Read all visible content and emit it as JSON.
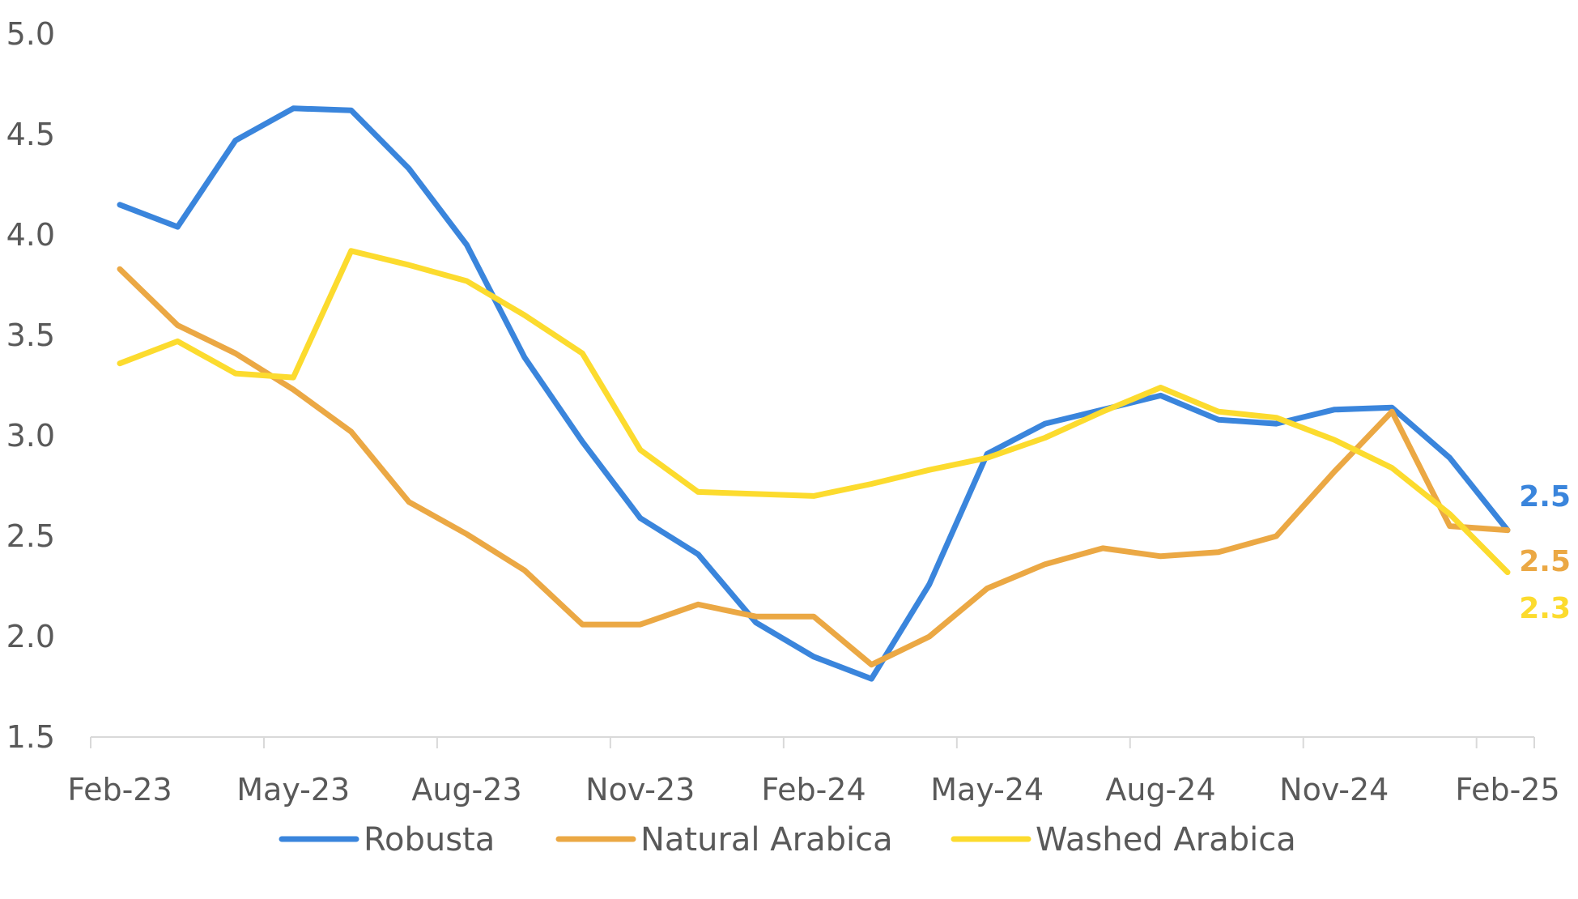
{
  "chart_data": {
    "type": "line",
    "title": "",
    "xlabel": "",
    "ylabel": "",
    "x": [
      "Feb-23",
      "Mar-23",
      "Apr-23",
      "May-23",
      "Jun-23",
      "Jul-23",
      "Aug-23",
      "Sep-23",
      "Oct-23",
      "Nov-23",
      "Dec-23",
      "Jan-24",
      "Feb-24",
      "Mar-24",
      "Apr-24",
      "May-24",
      "Jun-24",
      "Jul-24",
      "Aug-24",
      "Sep-24",
      "Oct-24",
      "Nov-24",
      "Dec-24",
      "Jan-25",
      "Feb-25"
    ],
    "x_tick_labels": [
      "Feb-23",
      "May-23",
      "Aug-23",
      "Nov-23",
      "Feb-24",
      "May-24",
      "Aug-24",
      "Nov-24",
      "Feb-25"
    ],
    "ylim": [
      1.5,
      5.0
    ],
    "y_ticks": [
      "1.5",
      "2.0",
      "2.5",
      "3.0",
      "3.5",
      "4.0",
      "4.5",
      "5.0"
    ],
    "grid": false,
    "legend_position": "bottom",
    "series": [
      {
        "name": "Robusta",
        "color": "#3A85DC",
        "end_label": "2.5",
        "values": [
          4.15,
          4.04,
          4.47,
          4.63,
          4.62,
          4.33,
          3.95,
          3.39,
          2.97,
          2.59,
          2.41,
          2.07,
          1.9,
          1.79,
          2.26,
          2.91,
          3.06,
          3.13,
          3.2,
          3.08,
          3.06,
          3.13,
          3.14,
          2.89,
          2.53
        ]
      },
      {
        "name": "Natural Arabica",
        "color": "#EBA844",
        "end_label": "2.5",
        "values": [
          3.83,
          3.55,
          3.41,
          3.23,
          3.02,
          2.67,
          2.51,
          2.33,
          2.06,
          2.06,
          2.16,
          2.1,
          2.1,
          1.86,
          2.0,
          2.24,
          2.36,
          2.44,
          2.4,
          2.42,
          2.5,
          2.82,
          3.12,
          2.55,
          2.53
        ]
      },
      {
        "name": "Washed Arabica",
        "color": "#FCDB2E",
        "end_label": "2.3",
        "values": [
          3.36,
          3.47,
          3.31,
          3.29,
          3.92,
          3.85,
          3.77,
          3.6,
          3.41,
          2.93,
          2.72,
          2.71,
          2.7,
          2.76,
          2.83,
          2.89,
          2.99,
          3.12,
          3.24,
          3.12,
          3.09,
          2.98,
          2.84,
          2.61,
          2.32
        ]
      }
    ]
  }
}
